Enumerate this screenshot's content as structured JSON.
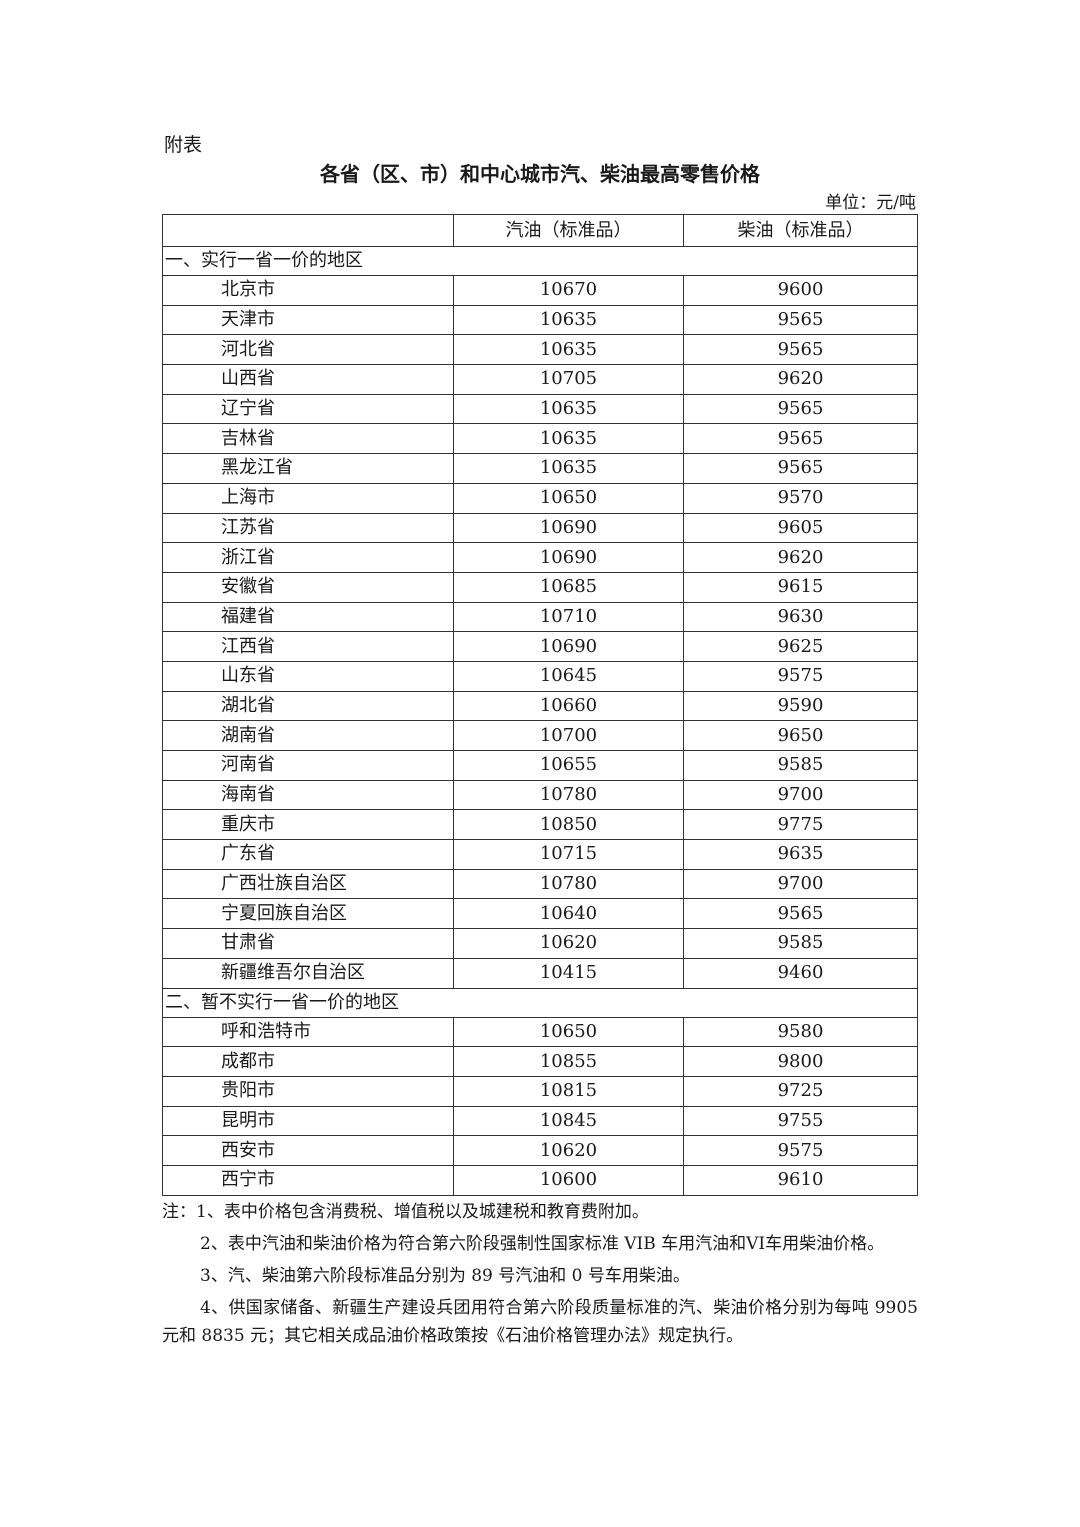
{
  "appendix_label": "附表",
  "title": "各省（区、市）和中心城市汽、柴油最高零售价格",
  "unit": "单位：元/吨",
  "table": {
    "headers": [
      "",
      "汽油（标准品）",
      "柴油（标准品）"
    ],
    "sections": [
      {
        "label": "一、实行一省一价的地区",
        "rows": [
          [
            "北京市",
            "10670",
            "9600"
          ],
          [
            "天津市",
            "10635",
            "9565"
          ],
          [
            "河北省",
            "10635",
            "9565"
          ],
          [
            "山西省",
            "10705",
            "9620"
          ],
          [
            "辽宁省",
            "10635",
            "9565"
          ],
          [
            "吉林省",
            "10635",
            "9565"
          ],
          [
            "黑龙江省",
            "10635",
            "9565"
          ],
          [
            "上海市",
            "10650",
            "9570"
          ],
          [
            "江苏省",
            "10690",
            "9605"
          ],
          [
            "浙江省",
            "10690",
            "9620"
          ],
          [
            "安徽省",
            "10685",
            "9615"
          ],
          [
            "福建省",
            "10710",
            "9630"
          ],
          [
            "江西省",
            "10690",
            "9625"
          ],
          [
            "山东省",
            "10645",
            "9575"
          ],
          [
            "湖北省",
            "10660",
            "9590"
          ],
          [
            "湖南省",
            "10700",
            "9650"
          ],
          [
            "河南省",
            "10655",
            "9585"
          ],
          [
            "海南省",
            "10780",
            "9700"
          ],
          [
            "重庆市",
            "10850",
            "9775"
          ],
          [
            "广东省",
            "10715",
            "9635"
          ],
          [
            "广西壮族自治区",
            "10780",
            "9700"
          ],
          [
            "宁夏回族自治区",
            "10640",
            "9565"
          ],
          [
            "甘肃省",
            "10620",
            "9585"
          ],
          [
            "新疆维吾尔自治区",
            "10415",
            "9460"
          ]
        ]
      },
      {
        "label": "二、暂不实行一省一价的地区",
        "rows": [
          [
            "呼和浩特市",
            "10650",
            "9580"
          ],
          [
            "成都市",
            "10855",
            "9800"
          ],
          [
            "贵阳市",
            "10815",
            "9725"
          ],
          [
            "昆明市",
            "10845",
            "9755"
          ],
          [
            "西安市",
            "10620",
            "9575"
          ],
          [
            "西宁市",
            "10600",
            "9610"
          ]
        ]
      }
    ]
  },
  "notes": [
    "注：1、表中价格包含消费税、增值税以及城建税和教育费附加。",
    "2、表中汽油和柴油价格为符合第六阶段强制性国家标准 VIB 车用汽油和VI车用柴油价格。",
    "3、汽、柴油第六阶段标准品分别为 89 号汽油和 0 号车用柴油。",
    "4、供国家储备、新疆生产建设兵团用符合第六阶段质量标准的汽、柴油价格分别为每吨 9905 元和 8835 元；其它相关成品油价格政策按《石油价格管理办法》规定执行。"
  ]
}
